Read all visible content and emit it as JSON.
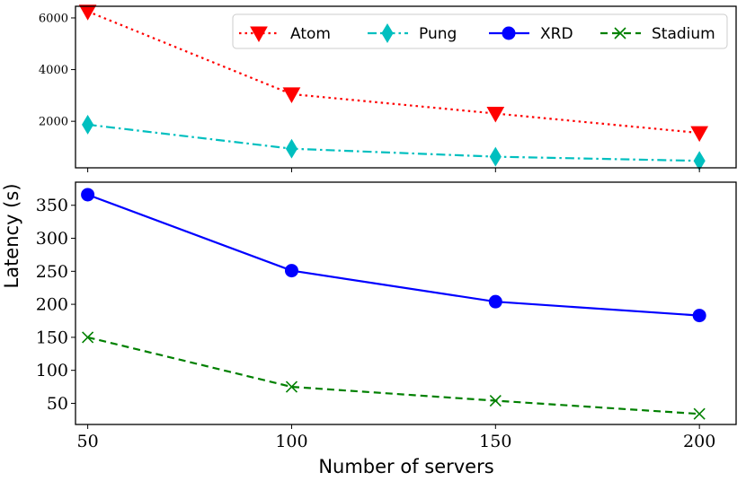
{
  "chart_data": {
    "type": "line",
    "xlabel": "Number of servers",
    "ylabel": "Latency (s)",
    "x": [
      50,
      100,
      150,
      200
    ],
    "x_ticks": [
      "50",
      "100",
      "150",
      "200"
    ],
    "xlim": [
      47,
      209
    ],
    "panels": [
      {
        "name": "top",
        "ylim": [
          200,
          6450
        ],
        "y_ticks": [
          "2000",
          "4000",
          "6000"
        ],
        "y_tick_values": [
          2000,
          4000,
          6000
        ],
        "series": [
          {
            "name": "Atom",
            "values": [
              6250,
              3050,
              2300,
              1550
            ],
            "color": "#ff0000",
            "style": "dotted",
            "marker": "triangle-down"
          },
          {
            "name": "Pung",
            "values": [
              1870,
              940,
              630,
              470
            ],
            "color": "#00bfbf",
            "style": "dashdot",
            "marker": "thin-diamond"
          }
        ]
      },
      {
        "name": "bottom",
        "ylim": [
          18,
          385
        ],
        "y_ticks": [
          "50",
          "100",
          "150",
          "200",
          "250",
          "300",
          "350"
        ],
        "y_tick_values": [
          50,
          100,
          150,
          200,
          250,
          300,
          350
        ],
        "series": [
          {
            "name": "XRD",
            "values": [
              366,
              251,
              204,
              183
            ],
            "color": "#0000ff",
            "style": "solid",
            "marker": "circle"
          },
          {
            "name": "Stadium",
            "values": [
              150,
              75,
              54,
              34
            ],
            "color": "#008000",
            "style": "dashed",
            "marker": "x"
          }
        ]
      }
    ],
    "legend": {
      "placement": "top",
      "entries": [
        "Atom",
        "Pung",
        "XRD",
        "Stadium"
      ]
    }
  }
}
